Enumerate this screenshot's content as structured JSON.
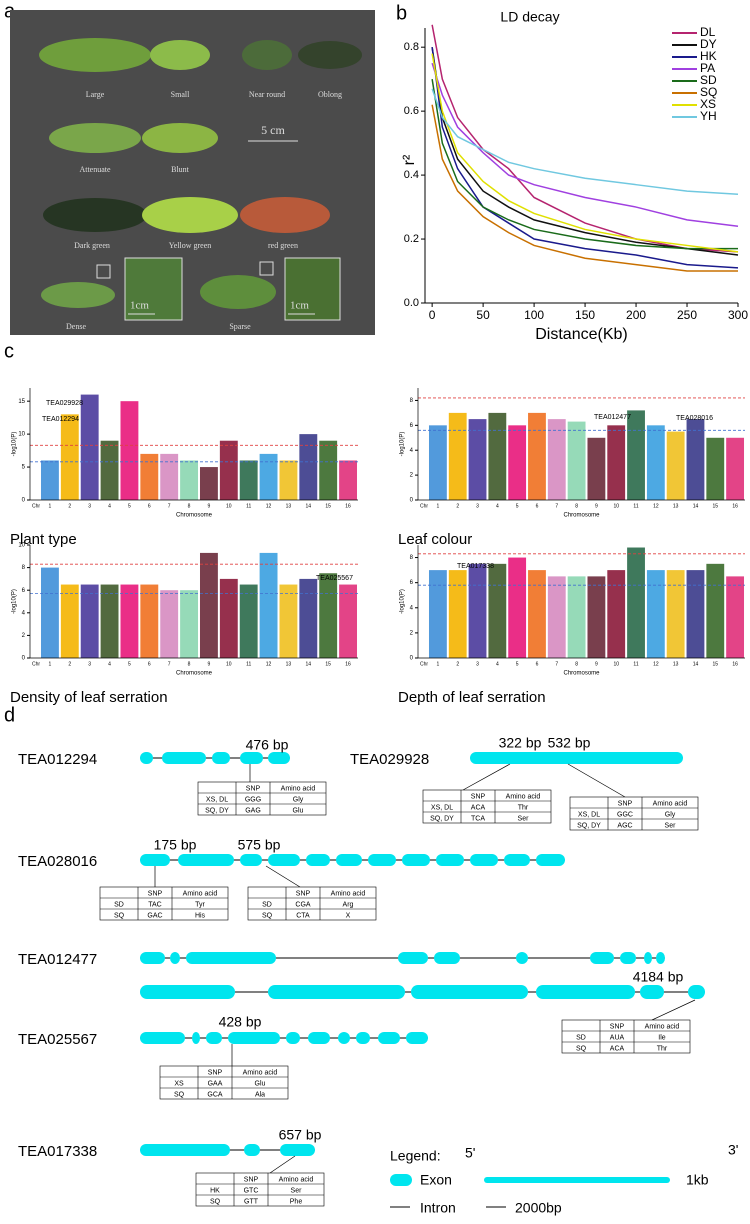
{
  "panel_labels": [
    "a",
    "b",
    "c",
    "d"
  ],
  "leaf_photo": {
    "labels": [
      "Large",
      "Small",
      "Near round",
      "Oblong",
      "Attenuate",
      "Blunt",
      "Dark green",
      "Yellow green",
      "red green",
      "Dense",
      "Sparse"
    ],
    "scale": "5 cm",
    "inset_scale": "1cm"
  },
  "chromosome_colors": [
    "#3f8fd8",
    "#f4b400",
    "#4a3a9b",
    "#3f5a2a",
    "#e8177a",
    "#f07020",
    "#d68bc0",
    "#8bd6b0",
    "#6a2a3a",
    "#8b1a3a",
    "#2a6a4a",
    "#3aa0e0",
    "#f0c020",
    "#3a3a8a",
    "#3a6a2a",
    "#e0307a"
  ],
  "chart_data": [
    {
      "type": "line",
      "title": "LD decay",
      "xlabel": "Distance(Kb)",
      "ylabel": "r²",
      "x": [
        0,
        10,
        25,
        50,
        75,
        100,
        150,
        200,
        250,
        300
      ],
      "xlim": [
        -7,
        300
      ],
      "xticks": [
        0,
        50,
        100,
        150,
        200,
        250,
        300
      ],
      "ylim": [
        0,
        0.86
      ],
      "yticks": [
        {
          "value": 0,
          "label": "0.0"
        },
        0.2,
        0.4,
        0.6,
        0.8
      ],
      "legend": "upper right",
      "series": [
        {
          "name": "DL",
          "color": "#b5246f",
          "values": [
            0.87,
            0.7,
            0.58,
            0.48,
            0.42,
            0.33,
            0.25,
            0.2,
            0.17,
            0.16
          ]
        },
        {
          "name": "DY",
          "color": "#111111",
          "values": [
            0.8,
            0.58,
            0.45,
            0.35,
            0.3,
            0.26,
            0.22,
            0.19,
            0.17,
            0.15
          ]
        },
        {
          "name": "HK",
          "color": "#1a1a8c",
          "values": [
            0.8,
            0.55,
            0.42,
            0.3,
            0.25,
            0.2,
            0.17,
            0.15,
            0.12,
            0.11
          ]
        },
        {
          "name": "PA",
          "color": "#a040e0",
          "values": [
            0.75,
            0.65,
            0.55,
            0.47,
            0.4,
            0.37,
            0.33,
            0.3,
            0.26,
            0.24
          ]
        },
        {
          "name": "SD",
          "color": "#1a6b1a",
          "values": [
            0.7,
            0.5,
            0.38,
            0.3,
            0.26,
            0.23,
            0.2,
            0.18,
            0.17,
            0.17
          ]
        },
        {
          "name": "SQ",
          "color": "#c87000",
          "values": [
            0.62,
            0.45,
            0.35,
            0.27,
            0.22,
            0.18,
            0.14,
            0.12,
            0.1,
            0.1
          ]
        },
        {
          "name": "XS",
          "color": "#e0e000",
          "values": [
            0.78,
            0.6,
            0.47,
            0.38,
            0.32,
            0.28,
            0.23,
            0.2,
            0.18,
            0.16
          ]
        },
        {
          "name": "YH",
          "color": "#70c8e0",
          "values": [
            0.67,
            0.58,
            0.52,
            0.48,
            0.44,
            0.42,
            0.39,
            0.37,
            0.35,
            0.34
          ]
        }
      ]
    },
    {
      "type": "manhattan",
      "title": "Plant type",
      "xlabel": "Chromosome",
      "ylabel": "-log10(P)",
      "x_prefix": "Chr",
      "categories": [
        1,
        2,
        3,
        4,
        5,
        6,
        7,
        8,
        9,
        10,
        11,
        12,
        13,
        14,
        15,
        16
      ],
      "values": [
        6,
        13,
        16,
        9,
        15,
        7,
        7,
        6,
        5,
        9,
        6,
        7,
        6,
        10,
        9,
        6
      ],
      "ylim": [
        0,
        17
      ],
      "yticks": [
        0,
        5,
        10,
        15
      ],
      "thresholds": [
        {
          "value": 8.3,
          "color": "#e04040"
        },
        {
          "value": 5.8,
          "color": "#4070d0"
        }
      ],
      "annotations": [
        "TEA029928",
        "TEA012294"
      ]
    },
    {
      "type": "manhattan",
      "title": "Leaf colour",
      "xlabel": "Chromosome",
      "ylabel": "-log10(P)",
      "x_prefix": "Chr",
      "categories": [
        1,
        2,
        3,
        4,
        5,
        6,
        7,
        8,
        9,
        10,
        11,
        12,
        13,
        14,
        15,
        16
      ],
      "values": [
        6,
        7,
        6.5,
        7,
        6,
        7,
        6.5,
        6.3,
        5,
        6,
        7.2,
        6,
        5.5,
        6.5,
        5,
        5
      ],
      "ylim": [
        0,
        9
      ],
      "yticks": [
        0,
        2,
        4,
        6,
        8
      ],
      "thresholds": [
        {
          "value": 8.2,
          "color": "#e04040"
        },
        {
          "value": 5.6,
          "color": "#4070d0"
        }
      ],
      "annotations": [
        "TEA012477",
        "TEA028016"
      ]
    },
    {
      "type": "manhattan",
      "title": "Density of leaf serration",
      "xlabel": "Chromosome",
      "ylabel": "-log10(P)",
      "x_prefix": "Chr",
      "categories": [
        1,
        2,
        3,
        4,
        5,
        6,
        7,
        8,
        9,
        10,
        11,
        12,
        13,
        14,
        15,
        16
      ],
      "values": [
        8,
        6.5,
        6.5,
        6.5,
        6.5,
        6.5,
        6,
        6,
        9.3,
        7,
        6.5,
        9.3,
        6.5,
        7,
        7.5,
        6.5
      ],
      "ylim": [
        0,
        10
      ],
      "yticks": [
        0,
        2,
        4,
        6,
        8,
        10
      ],
      "thresholds": [
        {
          "value": 8.3,
          "color": "#e04040"
        },
        {
          "value": 5.7,
          "color": "#4070d0"
        }
      ],
      "annotations": [
        "TEA025567"
      ]
    },
    {
      "type": "manhattan",
      "title": "Depth of leaf serration",
      "xlabel": "Chromosome",
      "ylabel": "-log10(P)",
      "x_prefix": "Chr",
      "categories": [
        1,
        2,
        3,
        4,
        5,
        6,
        7,
        8,
        9,
        10,
        11,
        12,
        13,
        14,
        15,
        16
      ],
      "values": [
        7,
        7,
        7.5,
        7.5,
        8,
        7,
        6.5,
        6.5,
        6.5,
        7,
        8.8,
        7,
        7,
        7,
        7.5,
        6.5
      ],
      "ylim": [
        0,
        9
      ],
      "yticks": [
        0,
        2,
        4,
        6,
        8
      ],
      "thresholds": [
        {
          "value": 8.3,
          "color": "#e04040"
        },
        {
          "value": 5.8,
          "color": "#4070d0"
        }
      ],
      "annotations": [
        "TEA017338"
      ]
    }
  ],
  "genes": [
    {
      "name": "TEA012294",
      "snps": [
        {
          "label": "476 bp",
          "header": [
            "SNP",
            "Amino acid"
          ],
          "rows": [
            [
              "XS, DL",
              "GGG",
              "Gly"
            ],
            [
              "SQ, DY",
              "GAG",
              "Glu"
            ]
          ]
        }
      ]
    },
    {
      "name": "TEA029928",
      "snps": [
        {
          "label": "322 bp",
          "header": [
            "SNP",
            "Amino acid"
          ],
          "rows": [
            [
              "XS, DL",
              "ACA",
              "Thr"
            ],
            [
              "SQ, DY",
              "TCA",
              "Ser"
            ]
          ]
        },
        {
          "label": "532 bp",
          "header": [
            "SNP",
            "Amino acid"
          ],
          "rows": [
            [
              "XS, DL",
              "GGC",
              "Gly"
            ],
            [
              "SQ, DY",
              "AGC",
              "Ser"
            ]
          ]
        }
      ]
    },
    {
      "name": "TEA028016",
      "snps": [
        {
          "label": "175 bp",
          "header": [
            "SNP",
            "Amino acid"
          ],
          "rows": [
            [
              "SD",
              "TAC",
              "Tyr"
            ],
            [
              "SQ",
              "GAC",
              "His"
            ]
          ]
        },
        {
          "label": "575 bp",
          "header": [
            "SNP",
            "Amino acid"
          ],
          "rows": [
            [
              "SD",
              "CGA",
              "Arg"
            ],
            [
              "SQ",
              "CTA",
              "X"
            ]
          ]
        }
      ]
    },
    {
      "name": "TEA012477",
      "snps": [
        {
          "label": "4184 bp",
          "header": [
            "SNP",
            "Amino acid"
          ],
          "rows": [
            [
              "SD",
              "AUA",
              "Ile"
            ],
            [
              "SQ",
              "ACA",
              "Thr"
            ]
          ]
        }
      ]
    },
    {
      "name": "TEA025567",
      "snps": [
        {
          "label": "428 bp",
          "header": [
            "SNP",
            "Amino acid"
          ],
          "rows": [
            [
              "XS",
              "GAA",
              "Glu"
            ],
            [
              "SQ",
              "GCA",
              "Ala"
            ]
          ]
        }
      ]
    },
    {
      "name": "TEA017338",
      "snps": [
        {
          "label": "657 bp",
          "header": [
            "SNP",
            "Amino acid"
          ],
          "rows": [
            [
              "HK",
              "GTC",
              "Ser"
            ],
            [
              "SQ",
              "GTT",
              "Phe"
            ]
          ]
        }
      ]
    }
  ],
  "gene_legend": {
    "title": "Legend:",
    "five_prime": "5'",
    "three_prime": "3'",
    "exon": "Exon",
    "exon_scale": "1kb",
    "intron": "Intron",
    "intron_scale": "2000bp"
  }
}
